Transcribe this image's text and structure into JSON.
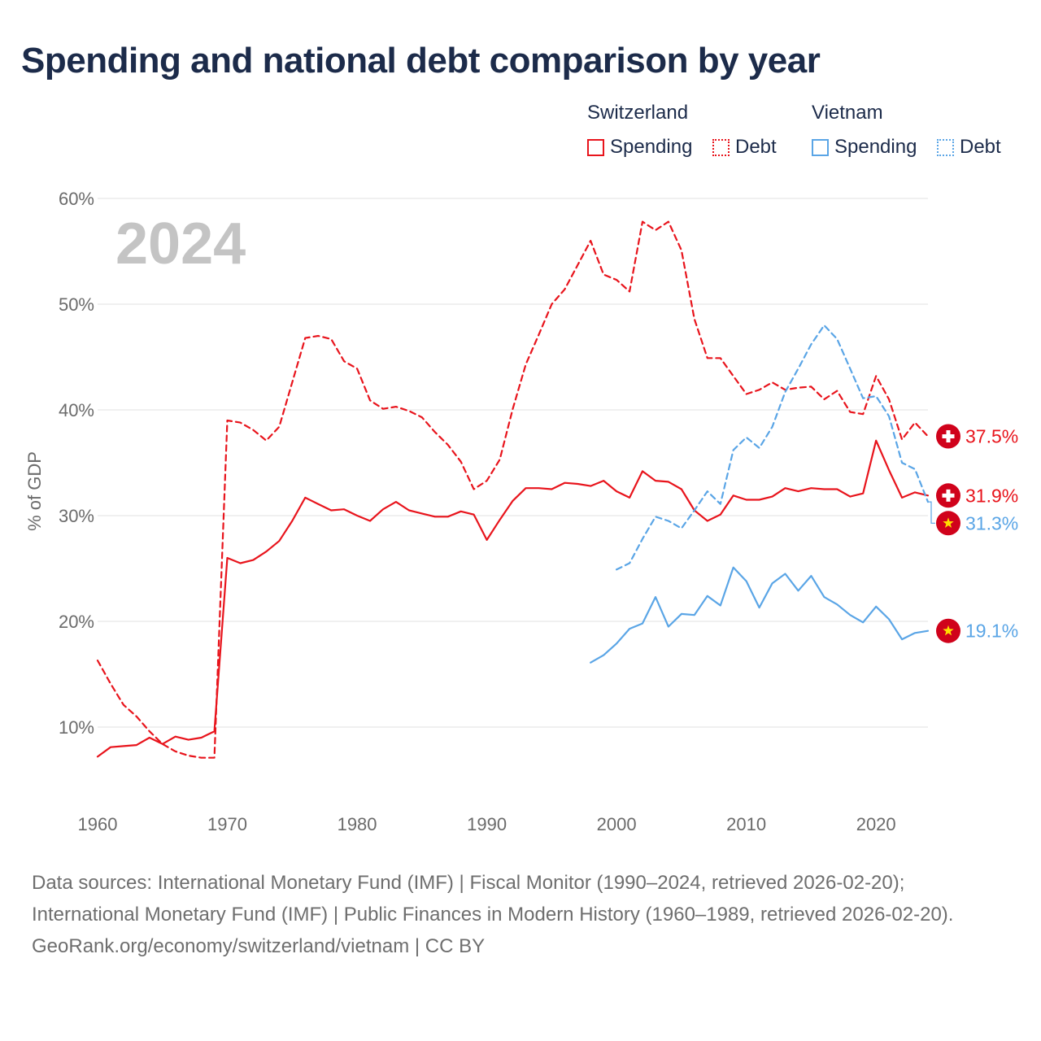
{
  "title": "Spending and national debt comparison by year",
  "legend": {
    "groups": [
      {
        "name": "Switzerland",
        "items": [
          "Spending",
          "Debt"
        ]
      },
      {
        "name": "Vietnam",
        "items": [
          "Spending",
          "Debt"
        ]
      }
    ]
  },
  "colors": {
    "switzerland": "#e8141c",
    "vietnam": "#5aa5e6",
    "grid": "#e6e6e6",
    "year_label": "#c4c4c4"
  },
  "footer": {
    "sources": "Data sources: International Monetary Fund (IMF) | Fiscal Monitor (1990–2024, retrieved 2026-02-20); International Monetary Fund (IMF) | Public Finances in Modern History (1960–1989, retrieved 2026-02-20).",
    "credit": "GeoRank.org/economy/switzerland/vietnam | CC BY"
  },
  "chart_data": {
    "type": "line",
    "year_label": "2024",
    "ylabel": "% of GDP",
    "xlim": [
      1960,
      2024
    ],
    "ylim": [
      0,
      60
    ],
    "x_ticks": [
      1960,
      1970,
      1980,
      1990,
      2000,
      2010,
      2020
    ],
    "y_ticks": [
      10,
      20,
      30,
      40,
      50,
      60
    ],
    "y_tick_labels": [
      "10%",
      "20%",
      "30%",
      "40%",
      "50%",
      "60%"
    ],
    "series": [
      {
        "name": "Switzerland Debt",
        "country": "switzerland",
        "style": "dashed",
        "end_label": "37.5%",
        "x": [
          1960,
          1961,
          1962,
          1963,
          1964,
          1965,
          1966,
          1967,
          1968,
          1969,
          1970,
          1971,
          1972,
          1973,
          1974,
          1975,
          1976,
          1977,
          1978,
          1979,
          1980,
          1981,
          1982,
          1983,
          1984,
          1985,
          1986,
          1987,
          1988,
          1989,
          1990,
          1991,
          1992,
          1993,
          1994,
          1995,
          1996,
          1997,
          1998,
          1999,
          2000,
          2001,
          2002,
          2003,
          2004,
          2005,
          2006,
          2007,
          2008,
          2009,
          2010,
          2011,
          2012,
          2013,
          2014,
          2015,
          2016,
          2017,
          2018,
          2019,
          2020,
          2021,
          2022,
          2023,
          2024
        ],
        "values": [
          16.3,
          14.1,
          12.1,
          11.0,
          9.6,
          8.4,
          7.7,
          7.3,
          7.1,
          7.1,
          39.0,
          38.8,
          38.1,
          37.1,
          38.4,
          42.6,
          46.8,
          47.0,
          46.7,
          44.6,
          43.9,
          40.9,
          40.1,
          40.3,
          39.9,
          39.3,
          37.9,
          36.7,
          35.1,
          32.5,
          33.3,
          35.3,
          40.1,
          44.3,
          47.1,
          50.0,
          51.4,
          53.7,
          56.0,
          52.8,
          52.3,
          51.2,
          57.8,
          57.0,
          57.8,
          55.1,
          48.6,
          44.9,
          44.9,
          43.2,
          41.5,
          41.9,
          42.6,
          41.9,
          42.1,
          42.2,
          41.0,
          41.8,
          39.8,
          39.6,
          43.2,
          41.0,
          37.2,
          38.8,
          37.5
        ]
      },
      {
        "name": "Switzerland Spending",
        "country": "switzerland",
        "style": "solid",
        "end_label": "31.9%",
        "x": [
          1960,
          1961,
          1962,
          1963,
          1964,
          1965,
          1966,
          1967,
          1968,
          1969,
          1970,
          1971,
          1972,
          1973,
          1974,
          1975,
          1976,
          1977,
          1978,
          1979,
          1980,
          1981,
          1982,
          1983,
          1984,
          1985,
          1986,
          1987,
          1988,
          1989,
          1990,
          1991,
          1992,
          1993,
          1994,
          1995,
          1996,
          1997,
          1998,
          1999,
          2000,
          2001,
          2002,
          2003,
          2004,
          2005,
          2006,
          2007,
          2008,
          2009,
          2010,
          2011,
          2012,
          2013,
          2014,
          2015,
          2016,
          2017,
          2018,
          2019,
          2020,
          2021,
          2022,
          2023,
          2024
        ],
        "values": [
          7.2,
          8.1,
          8.2,
          8.3,
          9.0,
          8.4,
          9.1,
          8.8,
          9.0,
          9.6,
          26.0,
          25.5,
          25.8,
          26.6,
          27.6,
          29.5,
          31.7,
          31.1,
          30.5,
          30.6,
          30.0,
          29.5,
          30.6,
          31.3,
          30.5,
          30.2,
          29.9,
          29.9,
          30.4,
          30.1,
          27.7,
          29.6,
          31.4,
          32.6,
          32.6,
          32.5,
          33.1,
          33.0,
          32.8,
          33.3,
          32.3,
          31.7,
          34.2,
          33.3,
          33.2,
          32.5,
          30.5,
          29.5,
          30.1,
          31.9,
          31.5,
          31.5,
          31.8,
          32.6,
          32.3,
          32.6,
          32.5,
          32.5,
          31.8,
          32.1,
          37.1,
          34.3,
          31.7,
          32.2,
          31.9
        ]
      },
      {
        "name": "Vietnam Debt",
        "country": "vietnam",
        "style": "dashed",
        "end_label": "31.3%",
        "x": [
          2000,
          2001,
          2002,
          2003,
          2004,
          2005,
          2006,
          2007,
          2008,
          2009,
          2010,
          2011,
          2012,
          2013,
          2014,
          2015,
          2016,
          2017,
          2018,
          2019,
          2020,
          2021,
          2022,
          2023,
          2024
        ],
        "values": [
          24.9,
          25.5,
          27.8,
          29.9,
          29.5,
          28.8,
          30.5,
          32.3,
          31.1,
          36.2,
          37.4,
          36.4,
          38.4,
          41.7,
          43.9,
          46.2,
          48.0,
          46.7,
          43.9,
          41.1,
          41.3,
          39.4,
          35.0,
          34.4,
          31.3
        ]
      },
      {
        "name": "Vietnam Spending",
        "country": "vietnam",
        "style": "solid",
        "end_label": "19.1%",
        "x": [
          1998,
          1999,
          2000,
          2001,
          2002,
          2003,
          2004,
          2005,
          2006,
          2007,
          2008,
          2009,
          2010,
          2011,
          2012,
          2013,
          2014,
          2015,
          2016,
          2017,
          2018,
          2019,
          2020,
          2021,
          2022,
          2023,
          2024
        ],
        "values": [
          16.1,
          16.8,
          17.9,
          19.3,
          19.8,
          22.3,
          19.5,
          20.7,
          20.6,
          22.4,
          21.5,
          25.1,
          23.8,
          21.3,
          23.6,
          24.5,
          22.9,
          24.3,
          22.3,
          21.6,
          20.6,
          19.9,
          21.4,
          20.2,
          18.3,
          18.9,
          19.1
        ]
      }
    ]
  }
}
